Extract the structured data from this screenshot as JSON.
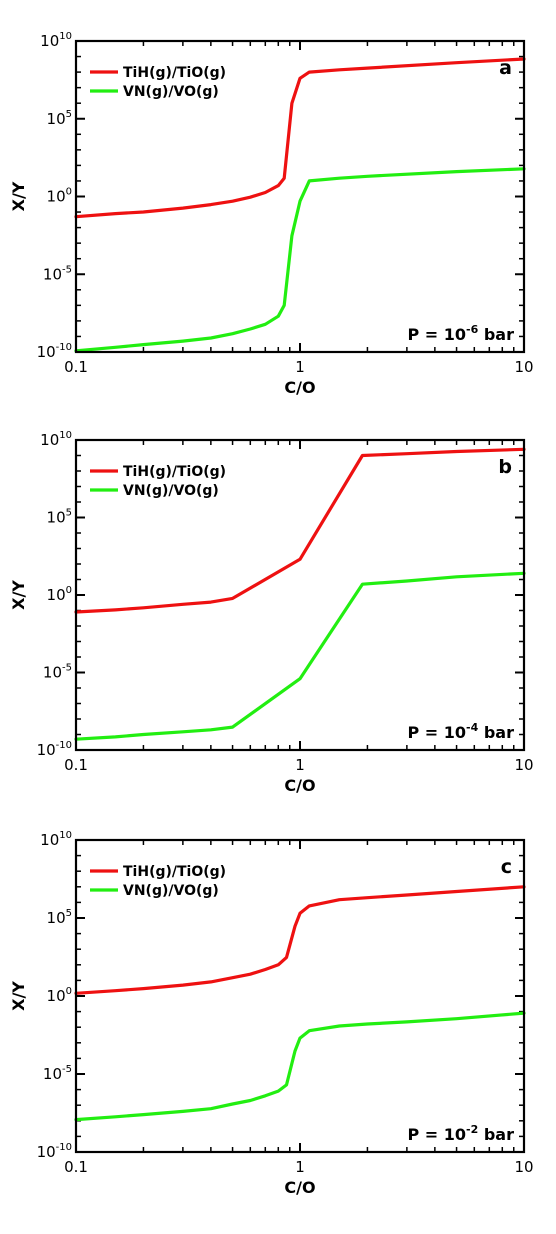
{
  "chart_data": [
    {
      "type": "line",
      "panel_label": "a",
      "annotation": {
        "prefix": "P = 10",
        "exponent": "-6",
        "suffix": " bar"
      },
      "xlabel": "C/O",
      "ylabel": "X/Y",
      "xscale": "log",
      "yscale": "log",
      "xlim": [
        0.1,
        10
      ],
      "ylim": [
        1e-10,
        10000000000.0
      ],
      "x_ticks": [
        {
          "value": 0.1,
          "label": "0.1"
        },
        {
          "value": 1,
          "label": "1"
        },
        {
          "value": 10,
          "label": "10"
        }
      ],
      "y_ticks": [
        {
          "value": 1e-10,
          "base": "10",
          "exp": "-10"
        },
        {
          "value": 1e-05,
          "base": "10",
          "exp": "-5"
        },
        {
          "value": 1,
          "base": "10",
          "exp": "0"
        },
        {
          "value": 100000.0,
          "base": "10",
          "exp": "5"
        },
        {
          "value": 10000000000.0,
          "base": "10",
          "exp": "10"
        }
      ],
      "legend_position": "top-left",
      "series": [
        {
          "name": "TiH(g)/TiO(g)",
          "color": "#ee1111",
          "x": [
            0.1,
            0.15,
            0.2,
            0.3,
            0.4,
            0.5,
            0.6,
            0.7,
            0.8,
            0.85,
            0.92,
            1.0,
            1.1,
            1.5,
            2.0,
            5.0,
            10.0
          ],
          "y": [
            0.05,
            0.08,
            0.1,
            0.18,
            0.3,
            0.5,
            0.9,
            1.8,
            5,
            15,
            1000000.0,
            40000000.0,
            100000000.0,
            140000000.0,
            180000000.0,
            400000000.0,
            700000000.0
          ]
        },
        {
          "name": "VN(g)/VO(g)",
          "color": "#22ee11",
          "x": [
            0.1,
            0.15,
            0.2,
            0.3,
            0.4,
            0.5,
            0.6,
            0.7,
            0.8,
            0.85,
            0.92,
            1.0,
            1.1,
            1.5,
            2.0,
            5.0,
            10.0
          ],
          "y": [
            1.2e-10,
            2e-10,
            3e-10,
            5e-10,
            8e-10,
            1.5e-09,
            3e-09,
            6e-09,
            2e-08,
            1e-07,
            0.003,
            0.5,
            10,
            15,
            20,
            40,
            60
          ]
        }
      ]
    },
    {
      "type": "line",
      "panel_label": "b",
      "annotation": {
        "prefix": "P = 10",
        "exponent": "-4",
        "suffix": " bar"
      },
      "xlabel": "C/O",
      "ylabel": "X/Y",
      "xscale": "log",
      "yscale": "log",
      "xlim": [
        0.1,
        10
      ],
      "ylim": [
        1e-10,
        10000000000.0
      ],
      "x_ticks": [
        {
          "value": 0.1,
          "label": "0.1"
        },
        {
          "value": 1,
          "label": "1"
        },
        {
          "value": 10,
          "label": "10"
        }
      ],
      "y_ticks": [
        {
          "value": 1e-10,
          "base": "10",
          "exp": "-10"
        },
        {
          "value": 1e-05,
          "base": "10",
          "exp": "-5"
        },
        {
          "value": 1,
          "base": "10",
          "exp": "0"
        },
        {
          "value": 100000.0,
          "base": "10",
          "exp": "5"
        },
        {
          "value": 10000000000.0,
          "base": "10",
          "exp": "10"
        }
      ],
      "legend_position": "top-left",
      "series": [
        {
          "name": "TiH(g)/TiO(g)",
          "color": "#ee1111",
          "x": [
            0.1,
            0.15,
            0.2,
            0.3,
            0.4,
            0.5,
            1.0,
            1.9,
            3.0,
            5.0,
            10.0
          ],
          "y": [
            0.08,
            0.11,
            0.15,
            0.25,
            0.35,
            0.6,
            200,
            1000000000.0,
            1300000000.0,
            1800000000.0,
            2500000000.0
          ]
        },
        {
          "name": "VN(g)/VO(g)",
          "color": "#22ee11",
          "x": [
            0.1,
            0.15,
            0.2,
            0.3,
            0.4,
            0.5,
            1.0,
            1.9,
            3.0,
            5.0,
            10.0
          ],
          "y": [
            5e-10,
            7e-10,
            1e-09,
            1.5e-09,
            2e-09,
            3e-09,
            4e-06,
            5,
            8,
            15,
            25
          ]
        }
      ]
    },
    {
      "type": "line",
      "panel_label": "c",
      "annotation": {
        "prefix": "P = 10",
        "exponent": "-2",
        "suffix": " bar"
      },
      "xlabel": "C/O",
      "ylabel": "X/Y",
      "xscale": "log",
      "yscale": "log",
      "xlim": [
        0.1,
        10
      ],
      "ylim": [
        1e-10,
        10000000000.0
      ],
      "x_ticks": [
        {
          "value": 0.1,
          "label": "0.1"
        },
        {
          "value": 1,
          "label": "1"
        },
        {
          "value": 10,
          "label": "10"
        }
      ],
      "y_ticks": [
        {
          "value": 1e-10,
          "base": "10",
          "exp": "-10"
        },
        {
          "value": 1e-05,
          "base": "10",
          "exp": "-5"
        },
        {
          "value": 1,
          "base": "10",
          "exp": "0"
        },
        {
          "value": 100000.0,
          "base": "10",
          "exp": "5"
        },
        {
          "value": 10000000000.0,
          "base": "10",
          "exp": "10"
        }
      ],
      "legend_position": "top-left",
      "series": [
        {
          "name": "TiH(g)/TiO(g)",
          "color": "#ee1111",
          "x": [
            0.1,
            0.15,
            0.2,
            0.3,
            0.4,
            0.5,
            0.6,
            0.7,
            0.8,
            0.87,
            0.95,
            1.0,
            1.1,
            1.5,
            2.0,
            3.0,
            5.0,
            10.0
          ],
          "y": [
            1.5,
            2.2,
            3,
            5,
            8,
            15,
            25,
            50,
            100,
            300,
            30000.0,
            200000.0,
            600000.0,
            1500000.0,
            2000000.0,
            3000000.0,
            5000000.0,
            10000000.0
          ]
        },
        {
          "name": "VN(g)/VO(g)",
          "color": "#22ee11",
          "x": [
            0.1,
            0.15,
            0.2,
            0.3,
            0.4,
            0.5,
            0.6,
            0.7,
            0.8,
            0.87,
            0.95,
            1.0,
            1.1,
            1.5,
            2.0,
            3.0,
            5.0,
            10.0
          ],
          "y": [
            1.2e-08,
            1.8e-08,
            2.5e-08,
            4e-08,
            6e-08,
            1.2e-07,
            2e-07,
            4e-07,
            8e-07,
            2e-06,
            0.0003,
            0.002,
            0.006,
            0.012,
            0.016,
            0.022,
            0.035,
            0.08
          ]
        }
      ]
    }
  ]
}
